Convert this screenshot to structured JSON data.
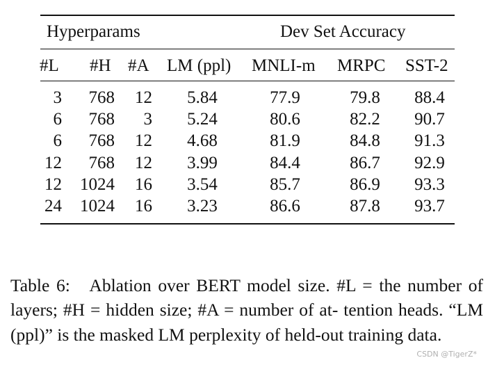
{
  "table": {
    "groups": {
      "hyperparams": "Hyperparams",
      "dev": "Dev Set Accuracy"
    },
    "columns": [
      "#L",
      "#H",
      "#A",
      "LM (ppl)",
      "MNLI-m",
      "MRPC",
      "SST-2"
    ],
    "rows": [
      [
        "3",
        "768",
        "12",
        "5.84",
        "77.9",
        "79.8",
        "88.4"
      ],
      [
        "6",
        "768",
        "3",
        "5.24",
        "80.6",
        "82.2",
        "90.7"
      ],
      [
        "6",
        "768",
        "12",
        "4.68",
        "81.9",
        "84.8",
        "91.3"
      ],
      [
        "12",
        "768",
        "12",
        "3.99",
        "84.4",
        "86.7",
        "92.9"
      ],
      [
        "12",
        "1024",
        "16",
        "3.54",
        "85.7",
        "86.9",
        "93.3"
      ],
      [
        "24",
        "1024",
        "16",
        "3.23",
        "86.6",
        "87.8",
        "93.7"
      ]
    ]
  },
  "caption": {
    "label": "Table 6:",
    "text": "Ablation over BERT model size. #L = the number of layers; #H = hidden size; #A = number of at- tention heads. “LM (ppl)” is the masked LM perplexity of held-out training data."
  },
  "watermark": "CSDN @TigerZ*"
}
